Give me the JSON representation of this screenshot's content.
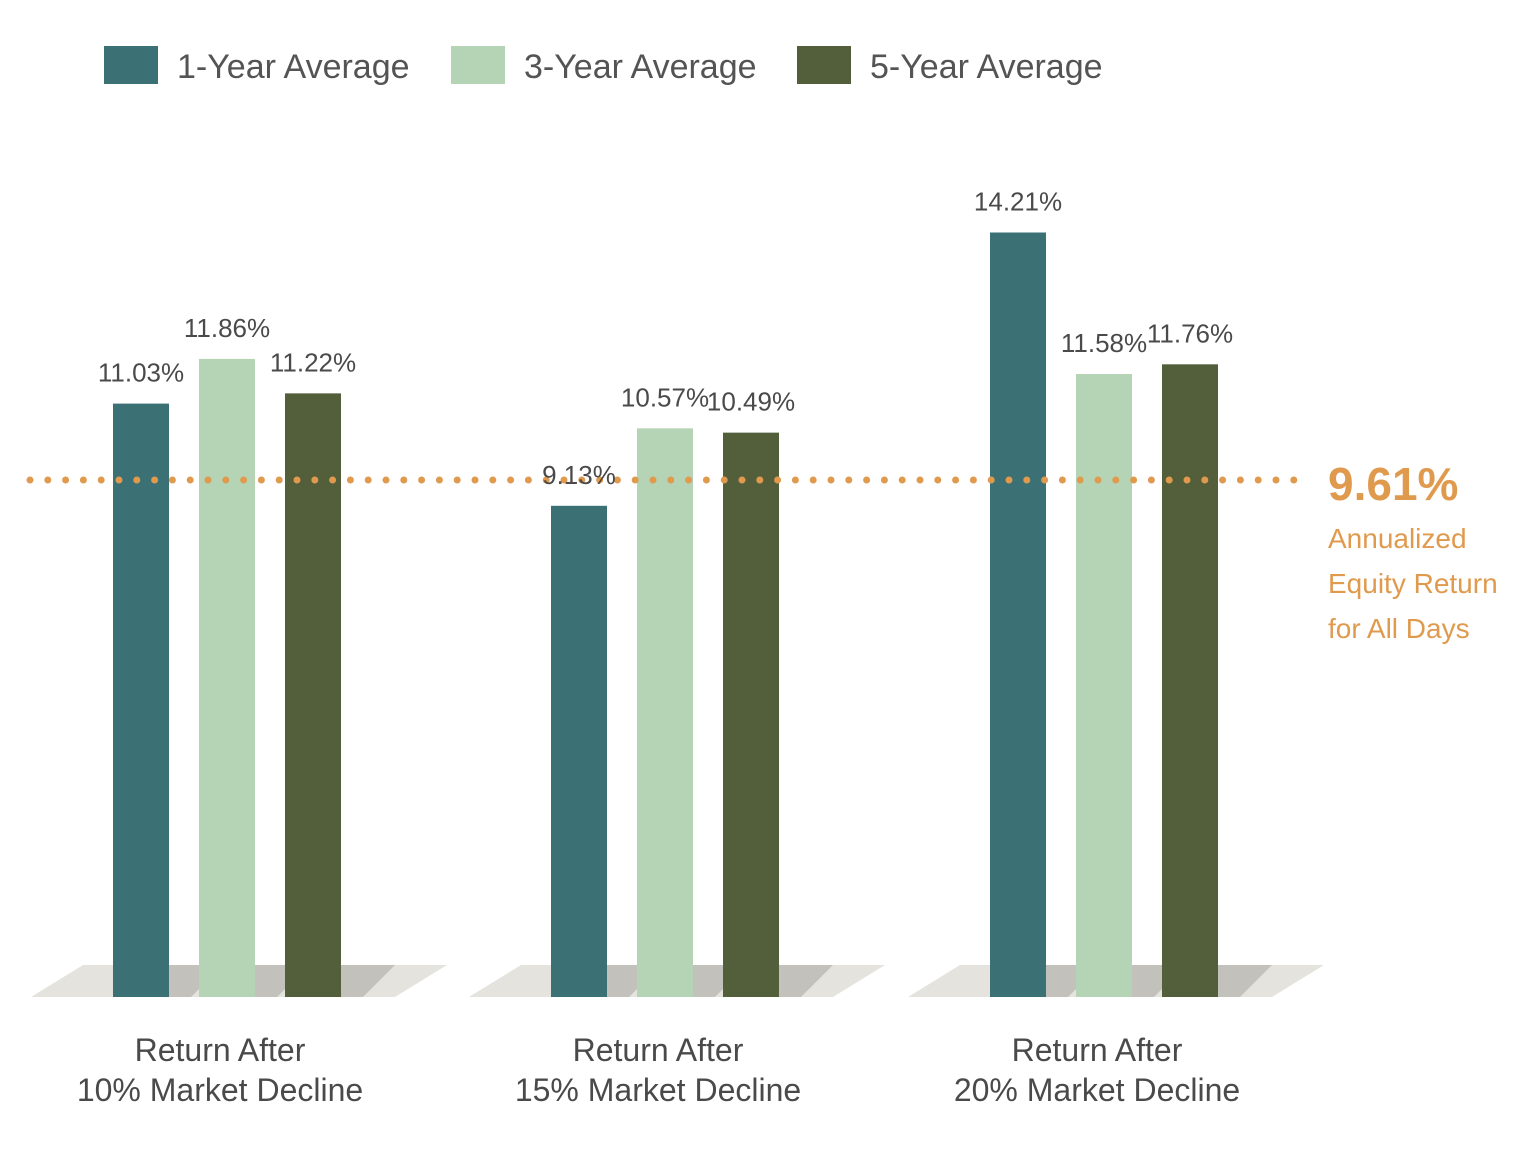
{
  "chart_data": {
    "type": "bar",
    "categories": [
      [
        "Return After",
        "10% Market Decline"
      ],
      [
        "Return After",
        "15% Market Decline"
      ],
      [
        "Return After",
        "20% Market Decline"
      ]
    ],
    "series": [
      {
        "name": "1-Year Average",
        "color": "#3b7174",
        "values": [
          11.03,
          9.13,
          14.21
        ],
        "labels": [
          "11.03%",
          "9.13%",
          "14.21%"
        ]
      },
      {
        "name": "3-Year Average",
        "color": "#b5d4b5",
        "values": [
          11.86,
          10.57,
          11.58
        ],
        "labels": [
          "11.86%",
          "10.57%",
          "11.58%"
        ]
      },
      {
        "name": "5-Year Average",
        "color": "#535e3a",
        "values": [
          11.22,
          10.49,
          11.76
        ],
        "labels": [
          "11.22%",
          "10.49%",
          "11.76%"
        ]
      }
    ],
    "reference_line": {
      "value": 9.61,
      "value_label": "9.61%",
      "label_lines": [
        "Annualized",
        "Equity Return",
        "for All Days"
      ],
      "color": "#e09a4e",
      "style": "dotted"
    },
    "ylim": [
      0,
      15
    ],
    "legend": {
      "placement": "top-left"
    },
    "grid": false,
    "title": "",
    "xlabel": "",
    "ylabel": ""
  }
}
